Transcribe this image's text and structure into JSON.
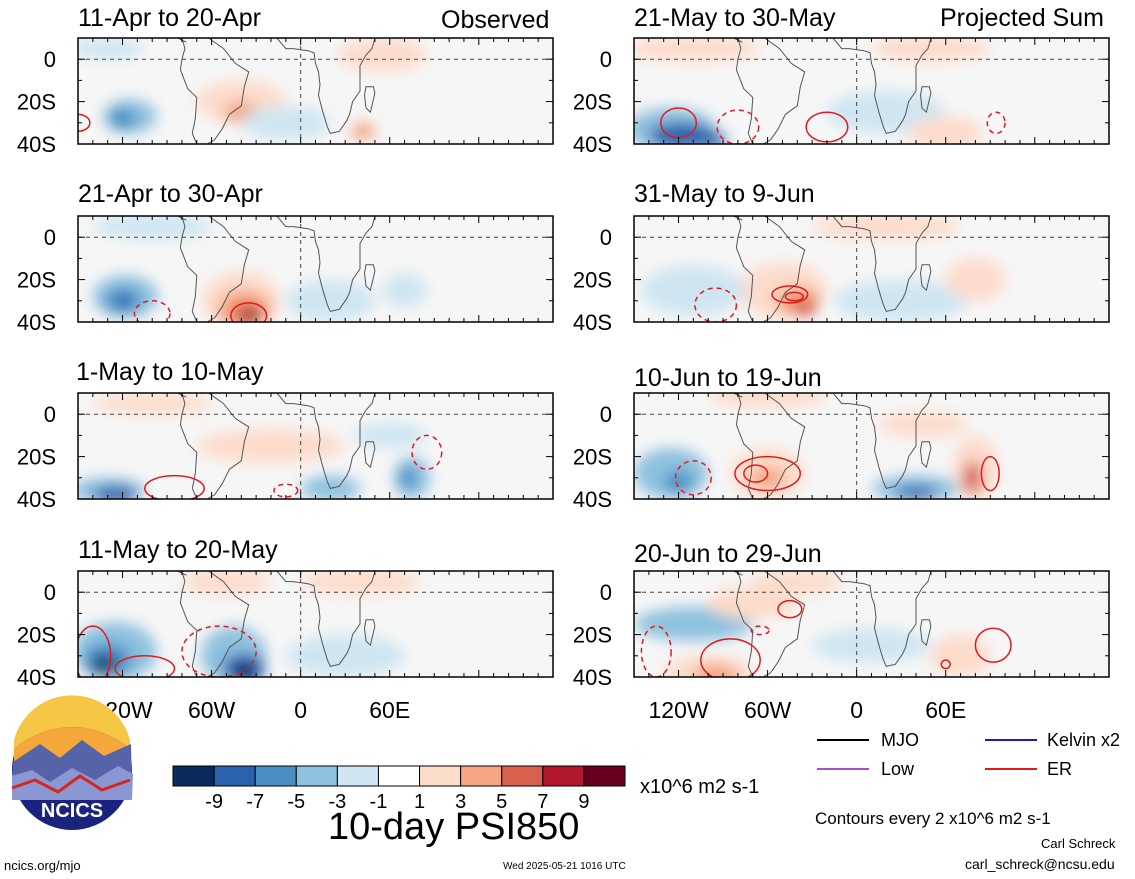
{
  "observed_label": "Observed",
  "projected_label": "Projected Sum",
  "panels_left": [
    {
      "title": "11-Apr to 20-Apr"
    },
    {
      "title": "21-Apr to 30-Apr"
    },
    {
      "title": "1-May to 10-May"
    },
    {
      "title": "11-May to 20-May"
    }
  ],
  "panels_right": [
    {
      "title": "21-May to 30-May"
    },
    {
      "title": "31-May to 9-Jun"
    },
    {
      "title": "10-Jun to 19-Jun"
    },
    {
      "title": "20-Jun to 29-Jun"
    }
  ],
  "lat_labels": [
    "0",
    "20S",
    "40S"
  ],
  "lon_labels": [
    "120W",
    "60W",
    "0",
    "60E"
  ],
  "colorbar": {
    "labels": [
      "-9",
      "-7",
      "-5",
      "-3",
      "-1",
      "1",
      "3",
      "5",
      "7",
      "9"
    ],
    "colors": [
      "#0b2a5e",
      "#2a62ad",
      "#4a8fc4",
      "#8ec1df",
      "#cfe6f2",
      "#ffffff",
      "#fddccb",
      "#f4a582",
      "#d6604d",
      "#b2182b",
      "#67001f"
    ],
    "unit": "x10^6 m2 s-1"
  },
  "main_title": "10-day PSI850",
  "legend": [
    {
      "label": "MJO",
      "color": "#000000"
    },
    {
      "label": "Kelvin x2",
      "color": "#1a1acc"
    },
    {
      "label": "Low",
      "color": "#a64dd8"
    },
    {
      "label": "ER",
      "color": "#e31a1c"
    }
  ],
  "contours_note": "Contours every 2 x10^6 m2 s-1",
  "author": "Carl Schreck",
  "email": "carl_schreck@ncsu.edu",
  "website": "ncics.org/mjo",
  "timestamp": "Wed 2025-05-21 1016 UTC",
  "logo_text": "NCICS"
}
